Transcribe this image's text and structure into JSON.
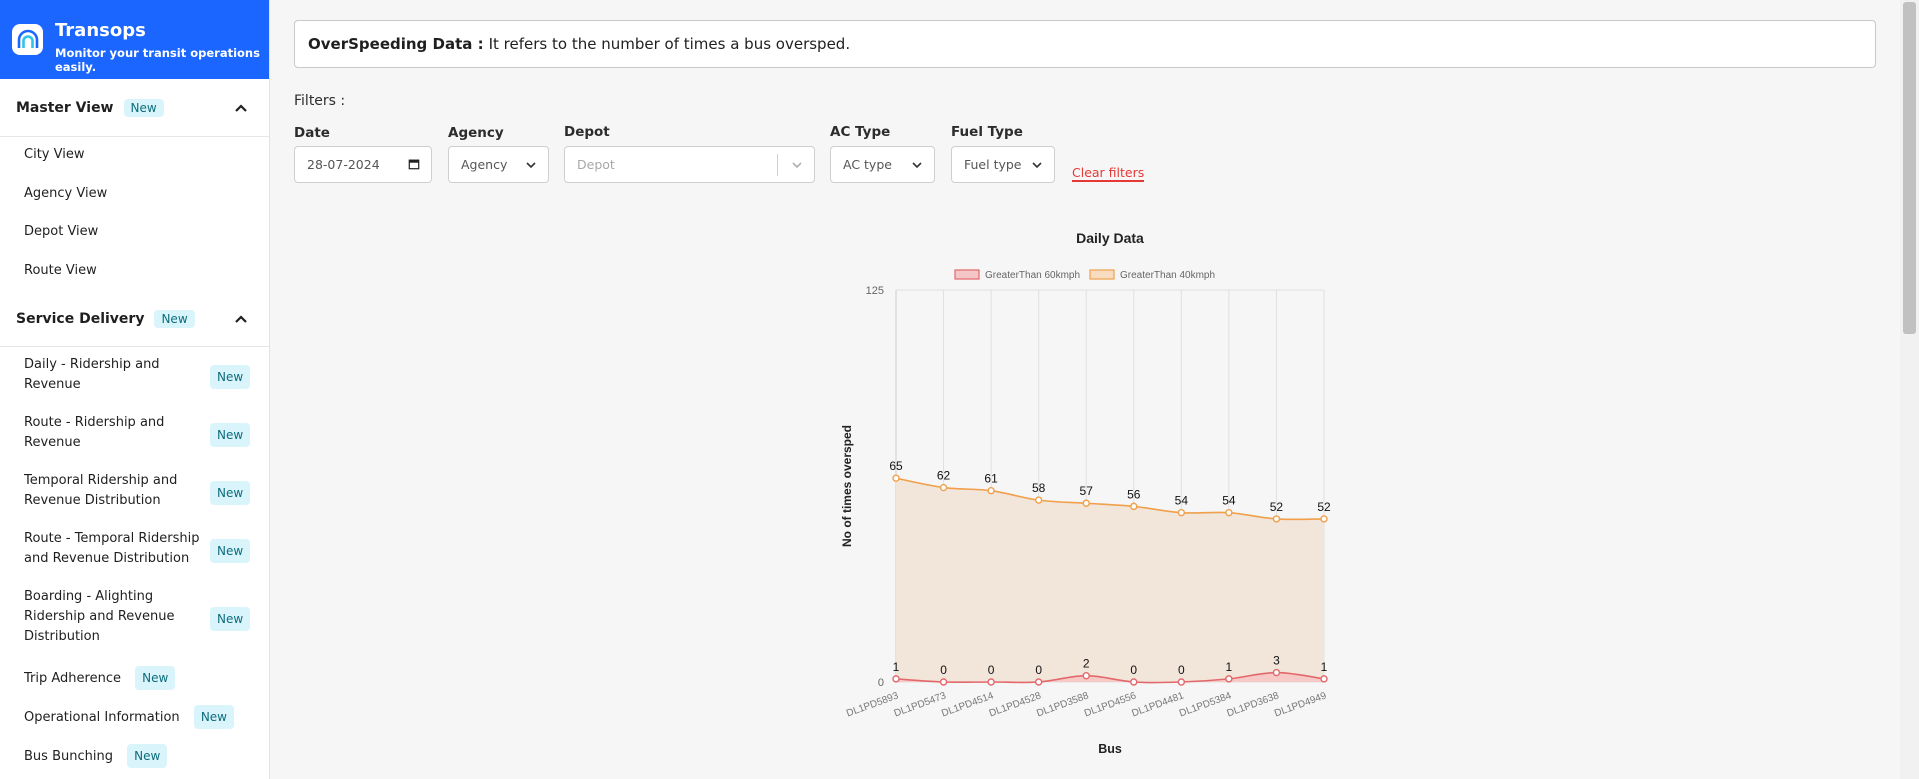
{
  "brand": {
    "name": "Transops",
    "tagline": "Monitor your transit operations easily."
  },
  "sidebar": {
    "sections": [
      {
        "title": "Master View",
        "badge": "New",
        "items": [
          {
            "label": "City View"
          },
          {
            "label": "Agency View"
          },
          {
            "label": "Depot View"
          },
          {
            "label": "Route View"
          }
        ]
      },
      {
        "title": "Service Delivery",
        "badge": "New",
        "items": [
          {
            "line1": "Daily - Ridership and",
            "line2": "Revenue",
            "badge": "New"
          },
          {
            "line1": "Route - Ridership and",
            "line2": "Revenue",
            "badge": "New"
          },
          {
            "line1": "Temporal Ridership and",
            "line2": "Revenue Distribution",
            "badge": "New"
          },
          {
            "line1": "Route - Temporal Ridership",
            "line2": "and Revenue Distribution",
            "badge": "New"
          },
          {
            "line1": "Boarding - Alighting",
            "line2": "Ridership and Revenue",
            "line3": "Distribution",
            "badge": "New"
          },
          {
            "line1": "Trip Adherence",
            "badge": "New"
          },
          {
            "line1": "Operational Information",
            "badge": "New"
          },
          {
            "line1": "Bus Bunching",
            "badge": "New"
          }
        ]
      }
    ]
  },
  "notice": {
    "title": "OverSpeeding Data :",
    "text": "It refers to the number of times a bus oversped."
  },
  "filters": {
    "heading": "Filters :",
    "date": {
      "label": "Date",
      "value": "28-07-2024"
    },
    "agency": {
      "label": "Agency",
      "value": "Agency"
    },
    "depot": {
      "label": "Depot",
      "placeholder": "Depot"
    },
    "ac": {
      "label": "AC Type",
      "value": "AC type"
    },
    "fuel": {
      "label": "Fuel Type",
      "value": "Fuel type"
    },
    "clear": "Clear filters"
  },
  "colors": {
    "brand": "#1a66ff",
    "series60": "#e3686b",
    "series40": "#f0a04b",
    "fill40": "#f2e5da",
    "clear": "#e53935"
  },
  "chart_data": {
    "type": "area",
    "title": "Daily Data",
    "xlabel": "Bus",
    "ylabel": "No of times oversped",
    "ylim": [
      0,
      125
    ],
    "yticks": [
      "0",
      "125"
    ],
    "categories": [
      "DL1PD5893",
      "DL1PD5473",
      "DL1PD4514",
      "DL1PD4528",
      "DL1PD3588",
      "DL1PD4556",
      "DL1PD4481",
      "DL1PD5384",
      "DL1PD3638",
      "DL1PD4949"
    ],
    "series": [
      {
        "name": "GreaterThan 60kmph",
        "values": [
          1,
          0,
          0,
          0,
          2,
          0,
          0,
          1,
          3,
          1
        ]
      },
      {
        "name": "GreaterThan 40kmph",
        "values": [
          65,
          62,
          61,
          58,
          57,
          56,
          54,
          54,
          52,
          52
        ]
      }
    ],
    "legend": "top",
    "grid": true
  }
}
